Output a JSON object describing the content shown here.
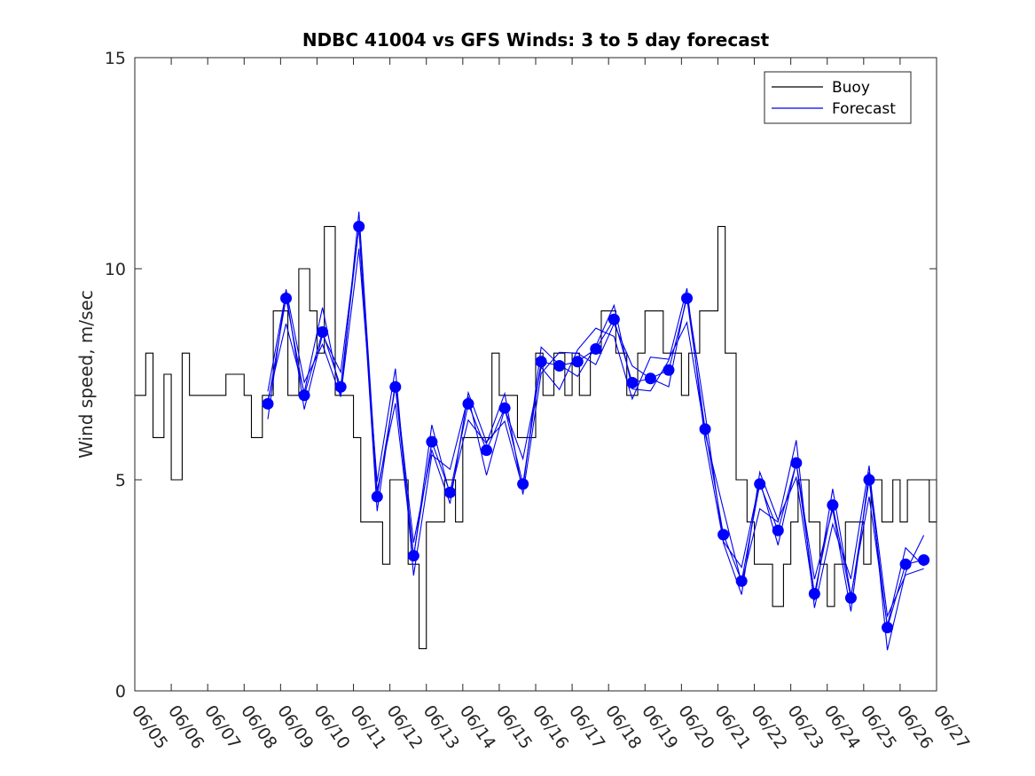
{
  "chart_data": {
    "type": "line",
    "title": "NDBC 41004 vs GFS Winds: 3 to 5 day forecast",
    "xlabel": "",
    "ylabel": "Wind speed, m/sec",
    "xlim": [
      0,
      22
    ],
    "ylim": [
      0,
      15
    ],
    "x_tick_labels": [
      "06/05",
      "06/06",
      "06/07",
      "06/08",
      "06/09",
      "06/10",
      "06/11",
      "06/12",
      "06/13",
      "06/14",
      "06/15",
      "06/16",
      "06/17",
      "06/18",
      "06/19",
      "06/20",
      "06/21",
      "06/22",
      "06/23",
      "06/24",
      "06/25",
      "06/26",
      "06/27"
    ],
    "y_ticks": [
      0,
      5,
      10,
      15
    ],
    "grid": false,
    "legend": {
      "position": "top-right",
      "entries": [
        "Buoy",
        "Forecast"
      ]
    },
    "colors": {
      "buoy": "#000000",
      "forecast": "#0000ee",
      "marker": "#0000ff"
    },
    "series": [
      {
        "name": "Buoy",
        "x_units": "days since 06/05",
        "x": [
          0,
          0.3,
          0.5,
          0.8,
          1,
          1.3,
          1.5,
          2,
          2.5,
          3,
          3.2,
          3.5,
          3.8,
          4,
          4.2,
          4.5,
          4.8,
          5,
          5.2,
          5.5,
          5.8,
          6,
          6.2,
          6.5,
          6.8,
          7,
          7.2,
          7.5,
          7.8,
          8,
          8.2,
          8.5,
          8.8,
          9,
          9.2,
          9.5,
          9.8,
          10,
          10.2,
          10.5,
          10.8,
          11,
          11.2,
          11.5,
          11.8,
          12,
          12.2,
          12.5,
          12.8,
          13,
          13.2,
          13.5,
          13.8,
          14,
          14.2,
          14.5,
          14.8,
          15,
          15.2,
          15.5,
          15.8,
          16,
          16.2,
          16.5,
          16.8,
          17,
          17.2,
          17.5,
          17.8,
          18,
          18.2,
          18.5,
          18.8,
          19,
          19.2,
          19.5,
          19.8,
          20,
          20.2,
          20.5,
          20.8,
          21,
          21.2,
          21.5,
          21.8,
          22
        ],
        "values": [
          7,
          8,
          6,
          7.5,
          5,
          8,
          7,
          7,
          7.5,
          7,
          6,
          7,
          9,
          9,
          7,
          10,
          9,
          8,
          11,
          7,
          7,
          6,
          4,
          4,
          3,
          5,
          5,
          3,
          1,
          4,
          4,
          5,
          4,
          6,
          6,
          6,
          8,
          7,
          7,
          6,
          6,
          8,
          7,
          8,
          7,
          8,
          7,
          8,
          9,
          9,
          8,
          7,
          8,
          9,
          9,
          8,
          8,
          7,
          8,
          9,
          9,
          11,
          8,
          5,
          4,
          3,
          3,
          2,
          3,
          4,
          5,
          4,
          3,
          2,
          3,
          4,
          4,
          3,
          5,
          4,
          5,
          4,
          5,
          5,
          4,
          5
        ]
      },
      {
        "name": "Forecast",
        "x_units": "days since 06/05",
        "markers_x": [
          3.65,
          4.15,
          4.65,
          5.15,
          5.65,
          6.15,
          6.65,
          7.15,
          7.65,
          8.15,
          8.65,
          9.15,
          9.65,
          10.15,
          10.65,
          11.15,
          11.65,
          12.15,
          12.65,
          13.15,
          13.65,
          14.15,
          14.65,
          15.15,
          15.65,
          16.15,
          16.65,
          17.15,
          17.65,
          18.15,
          18.65,
          19.15,
          19.65,
          20.15,
          20.65,
          21.15,
          21.65
        ],
        "markers_y": [
          6.8,
          9.3,
          7.0,
          8.5,
          7.2,
          11.0,
          4.6,
          7.2,
          3.2,
          5.9,
          4.7,
          6.8,
          5.7,
          6.7,
          4.9,
          7.8,
          7.7,
          7.8,
          8.1,
          8.8,
          7.3,
          7.4,
          7.6,
          9.3,
          6.2,
          3.7,
          2.6,
          4.9,
          3.8,
          5.4,
          2.3,
          4.4,
          2.2,
          5.0,
          1.5,
          3.0,
          3.1
        ]
      }
    ]
  }
}
